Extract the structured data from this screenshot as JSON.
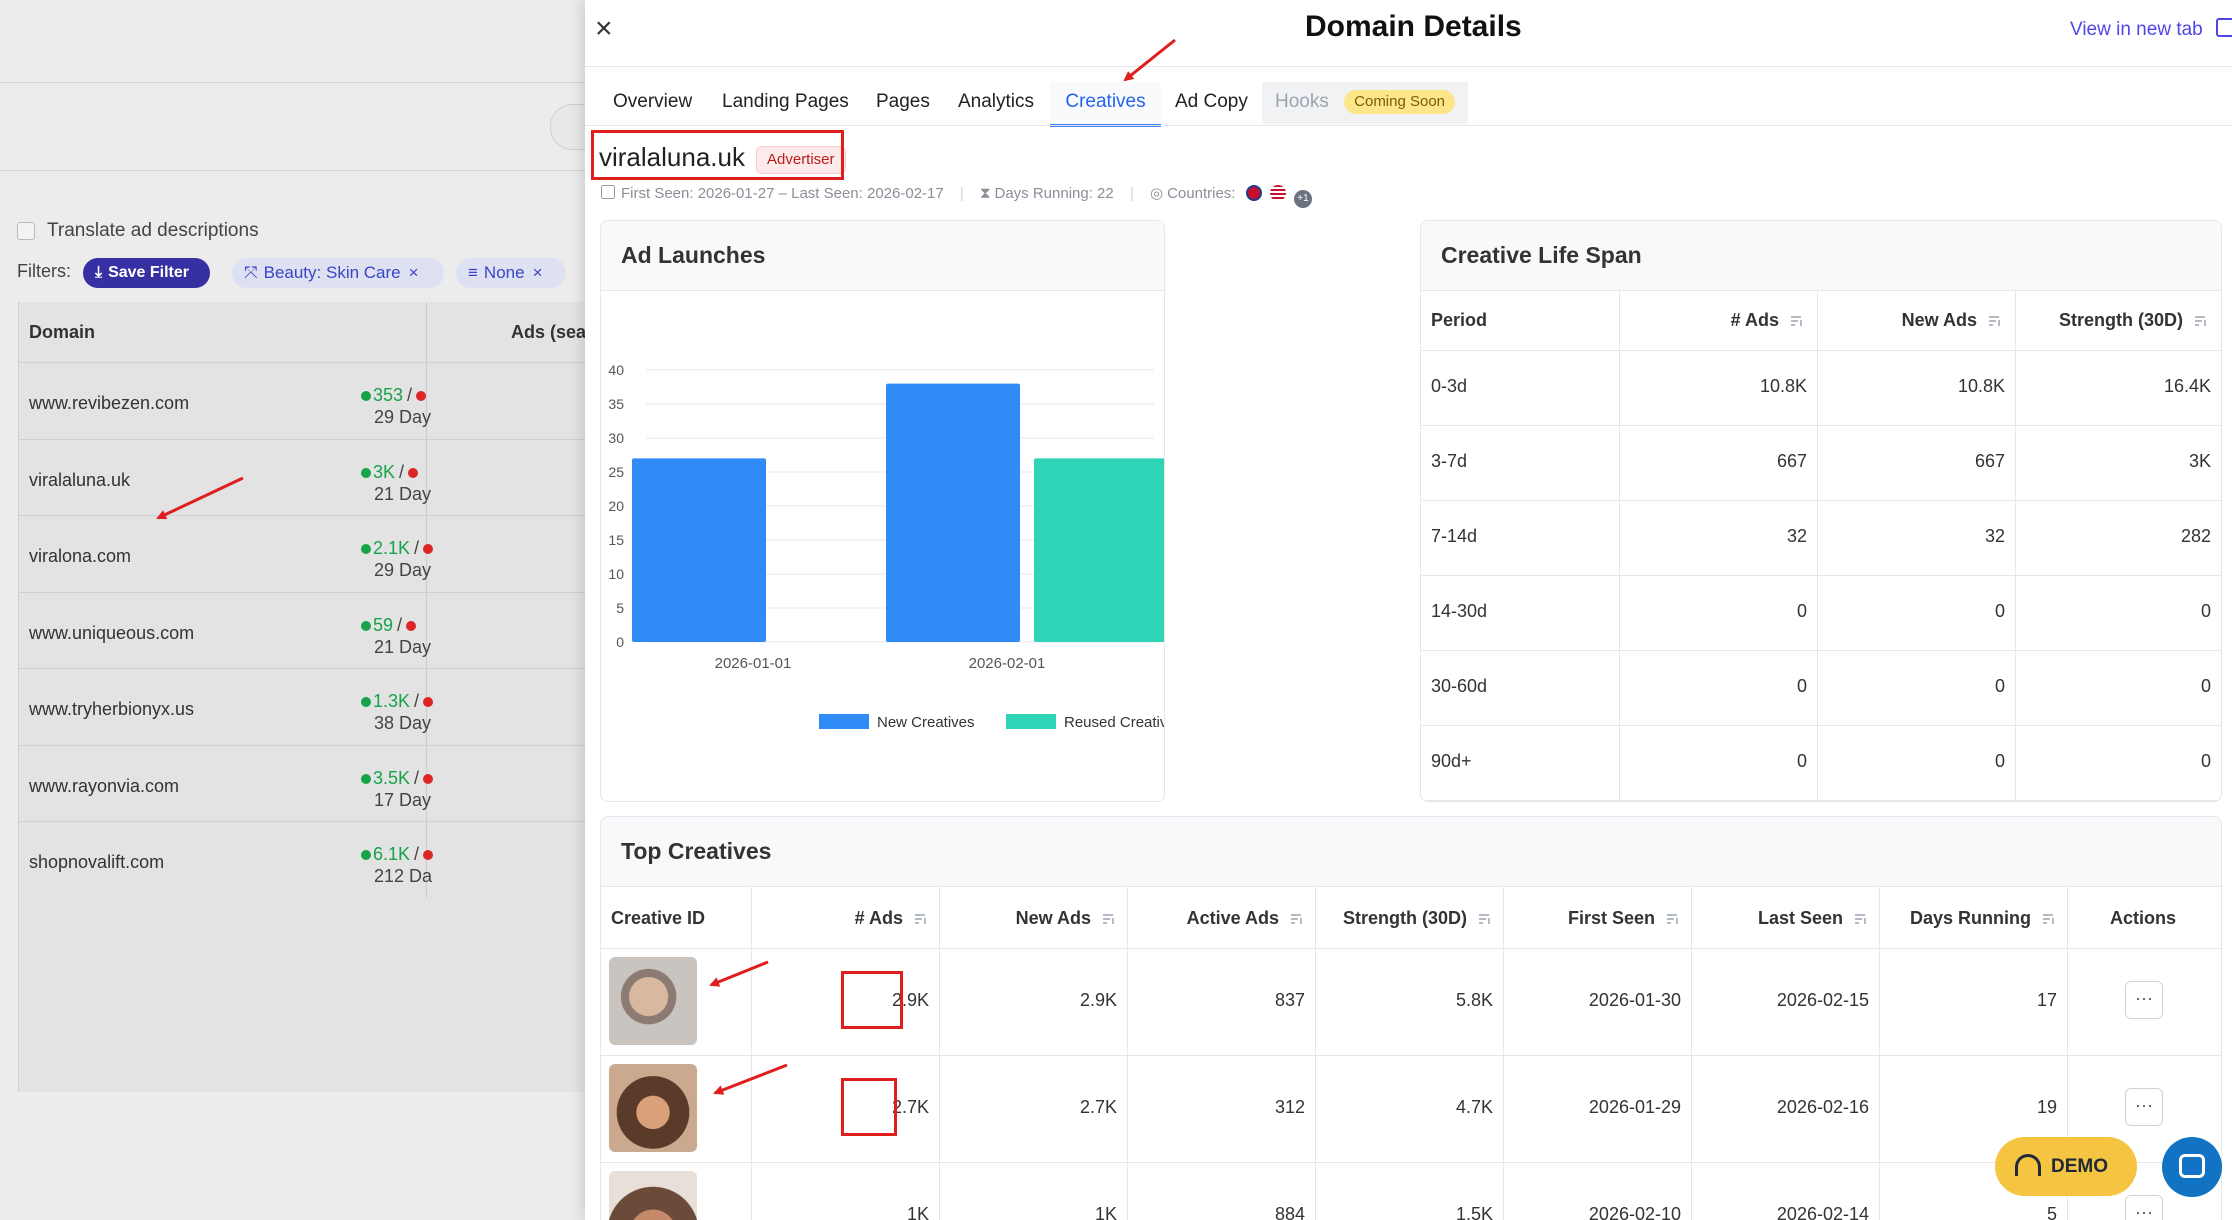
{
  "background": {
    "translate_label": "Translate ad descriptions",
    "filters_label": "Filters:",
    "save_filter": "Save Filter",
    "filter_chip_1": "Beauty: Skin Care",
    "filter_chip_2": "None",
    "table_headers": {
      "domain": "Domain",
      "ads": "Ads (sea"
    },
    "rows": [
      {
        "domain": "www.revibezen.com",
        "green": "353",
        "sep": "/",
        "days": "29 Day"
      },
      {
        "domain": "viralaluna.uk",
        "green": "3K",
        "sep": "/",
        "days": "21 Day"
      },
      {
        "domain": "viralona.com",
        "green": "2.1K",
        "sep": "/",
        "days": "29 Day"
      },
      {
        "domain": "www.uniqueous.com",
        "green": "59",
        "sep": "/",
        "days": "21 Day"
      },
      {
        "domain": "www.tryherbionyx.us",
        "green": "1.3K",
        "sep": "/",
        "days": "38 Day"
      },
      {
        "domain": "www.rayonvia.com",
        "green": "3.5K",
        "sep": "/",
        "days": "17 Day"
      },
      {
        "domain": "shopnovalift.com",
        "green": "6.1K",
        "sep": "/",
        "days": "212 Da"
      }
    ]
  },
  "drawer": {
    "title": "Domain Details",
    "view_new_tab": "View in new tab",
    "tabs": [
      "Overview",
      "Landing Pages",
      "Pages",
      "Analytics",
      "Creatives",
      "Ad Copy",
      "Hooks"
    ],
    "active_tab": "Creatives",
    "coming_soon": "Coming Soon",
    "domain_name": "viralaluna.uk",
    "badge": "Advertiser",
    "first_seen_text": "First Seen: 2026-01-27 – Last Seen: 2026-02-17",
    "days_running_text": "Days Running: 22",
    "countries_label": "Countries:",
    "countries_more": "+1"
  },
  "ad_launches": {
    "title": "Ad Launches",
    "y_ticks": [
      "0",
      "5",
      "10",
      "15",
      "20",
      "25",
      "30",
      "35",
      "40"
    ],
    "legend_new": "New Creatives",
    "legend_reused": "Reused Creatives"
  },
  "chart_data": {
    "type": "bar",
    "categories": [
      "2026-01-01",
      "2026-02-01"
    ],
    "series": [
      {
        "name": "New Creatives",
        "values": [
          27,
          38
        ],
        "color": "#2f8bf5"
      },
      {
        "name": "Reused Creatives",
        "values": [
          0,
          27
        ],
        "color": "#2fd3b5"
      }
    ],
    "ylim": [
      0,
      40
    ],
    "grid": true,
    "legend": "bottom"
  },
  "lifespan": {
    "title": "Creative Life Span",
    "headers": [
      "Period",
      "# Ads",
      "New Ads",
      "Strength (30D)"
    ],
    "rows": [
      [
        "0-3d",
        "10.8K",
        "10.8K",
        "16.4K"
      ],
      [
        "3-7d",
        "667",
        "667",
        "3K"
      ],
      [
        "7-14d",
        "32",
        "32",
        "282"
      ],
      [
        "14-30d",
        "0",
        "0",
        "0"
      ],
      [
        "30-60d",
        "0",
        "0",
        "0"
      ],
      [
        "90d+",
        "0",
        "0",
        "0"
      ]
    ]
  },
  "top_creatives": {
    "title": "Top Creatives",
    "headers": [
      "Creative ID",
      "# Ads",
      "New Ads",
      "Active Ads",
      "Strength (30D)",
      "First Seen",
      "Last Seen",
      "Days Running",
      "Actions"
    ],
    "rows": [
      [
        "2.9K",
        "2.9K",
        "837",
        "5.8K",
        "2026-01-30",
        "2026-02-15",
        "17"
      ],
      [
        "2.7K",
        "2.7K",
        "312",
        "4.7K",
        "2026-01-29",
        "2026-02-16",
        "19"
      ],
      [
        "1K",
        "1K",
        "884",
        "1.5K",
        "2026-02-10",
        "2026-02-14",
        "5"
      ]
    ],
    "actions_label": "···"
  },
  "demo_button": "DEMO",
  "colors": {
    "accent": "#3b82f6",
    "link": "#4f46e5",
    "annotation": "#e01e1e",
    "badge_bg": "#fde68a"
  }
}
